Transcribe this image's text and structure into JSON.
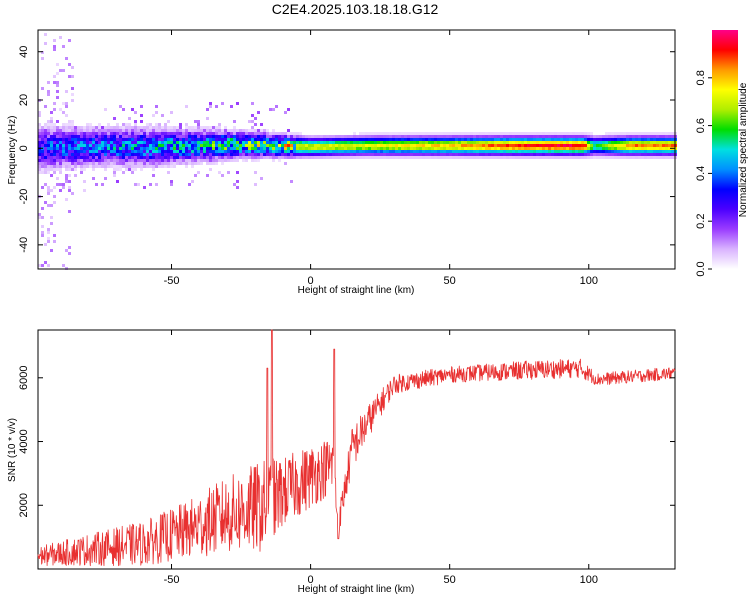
{
  "page": {
    "title": "C2E4.2025.103.18.18.G12"
  },
  "chart_data": [
    {
      "type": "heatmap",
      "xlabel": "Height of straight line (km)",
      "ylabel": "Frequency (Hz)",
      "xlim": [
        -98,
        131
      ],
      "ylim": [
        -50,
        49
      ],
      "xticks": [
        -50,
        0,
        50,
        100
      ],
      "yticks": [
        -40,
        -20,
        0,
        20,
        40
      ],
      "colorbar": {
        "label": "Normalized spectral amplitude",
        "range": [
          0,
          1
        ],
        "ticks": [
          0.0,
          0.2,
          0.4,
          0.6,
          0.8
        ],
        "colors": [
          "#ffffff",
          "#d9b3ff",
          "#9a3cff",
          "#4b00ff",
          "#0000ff",
          "#0090ff",
          "#00e0e0",
          "#00dd00",
          "#b0ee00",
          "#ffff00",
          "#ff9900",
          "#ff0000",
          "#ff0088"
        ]
      },
      "ridge": [
        {
          "x": -98,
          "f": 0.0,
          "width": 7,
          "amp": 0.35
        },
        {
          "x": -80,
          "f": 0.5,
          "width": 6,
          "amp": 0.4
        },
        {
          "x": -60,
          "f": 0.5,
          "width": 6,
          "amp": 0.45
        },
        {
          "x": -40,
          "f": 1.0,
          "width": 5,
          "amp": 0.5
        },
        {
          "x": -25,
          "f": 1.5,
          "width": 4,
          "amp": 0.62
        },
        {
          "x": -10,
          "f": 1.0,
          "width": 3.5,
          "amp": 0.7
        },
        {
          "x": 0,
          "f": 0.5,
          "width": 3,
          "amp": 0.72
        },
        {
          "x": 20,
          "f": 1.0,
          "width": 3,
          "amp": 0.72
        },
        {
          "x": 50,
          "f": 1.0,
          "width": 3,
          "amp": 0.8
        },
        {
          "x": 75,
          "f": 1.0,
          "width": 3,
          "amp": 0.92
        },
        {
          "x": 98,
          "f": 1.0,
          "width": 3,
          "amp": 0.95
        },
        {
          "x": 102,
          "f": 1.0,
          "width": 3,
          "amp": 0.55
        },
        {
          "x": 115,
          "f": 1.0,
          "width": 3,
          "amp": 0.85
        },
        {
          "x": 131,
          "f": 1.0,
          "width": 3,
          "amp": 0.85
        }
      ]
    },
    {
      "type": "line",
      "xlabel": "Height of straight line (km)",
      "ylabel": "SNR (10 * v/v)",
      "xlim": [
        -98,
        131
      ],
      "ylim": [
        0,
        7500
      ],
      "xticks": [
        -50,
        0,
        50,
        100
      ],
      "yticks": [
        2000,
        4000,
        6000
      ],
      "line_color": "#e83030",
      "envelope": [
        {
          "x": -98,
          "mean": 400,
          "spread": 300
        },
        {
          "x": -80,
          "mean": 600,
          "spread": 500
        },
        {
          "x": -60,
          "mean": 800,
          "spread": 700
        },
        {
          "x": -45,
          "mean": 1200,
          "spread": 900
        },
        {
          "x": -30,
          "mean": 1700,
          "spread": 1200
        },
        {
          "x": -15,
          "mean": 2000,
          "spread": 1500
        },
        {
          "x": -10,
          "mean": 2400,
          "spread": 1100
        },
        {
          "x": 0,
          "mean": 2900,
          "spread": 1000
        },
        {
          "x": 8,
          "mean": 3300,
          "spread": 900
        },
        {
          "x": 10,
          "mean": 1400,
          "spread": 400
        },
        {
          "x": 15,
          "mean": 3800,
          "spread": 700
        },
        {
          "x": 22,
          "mean": 4800,
          "spread": 500
        },
        {
          "x": 30,
          "mean": 5800,
          "spread": 300
        },
        {
          "x": 50,
          "mean": 6100,
          "spread": 250
        },
        {
          "x": 80,
          "mean": 6250,
          "spread": 300
        },
        {
          "x": 97,
          "mean": 6300,
          "spread": 300
        },
        {
          "x": 103,
          "mean": 5950,
          "spread": 200
        },
        {
          "x": 131,
          "mean": 6150,
          "spread": 200
        }
      ],
      "peaks": [
        {
          "x": -14,
          "y": 7500
        },
        {
          "x": -15.5,
          "y": 6300
        },
        {
          "x": 8.5,
          "y": 6900
        },
        {
          "x": 10,
          "y": 950
        }
      ]
    }
  ]
}
